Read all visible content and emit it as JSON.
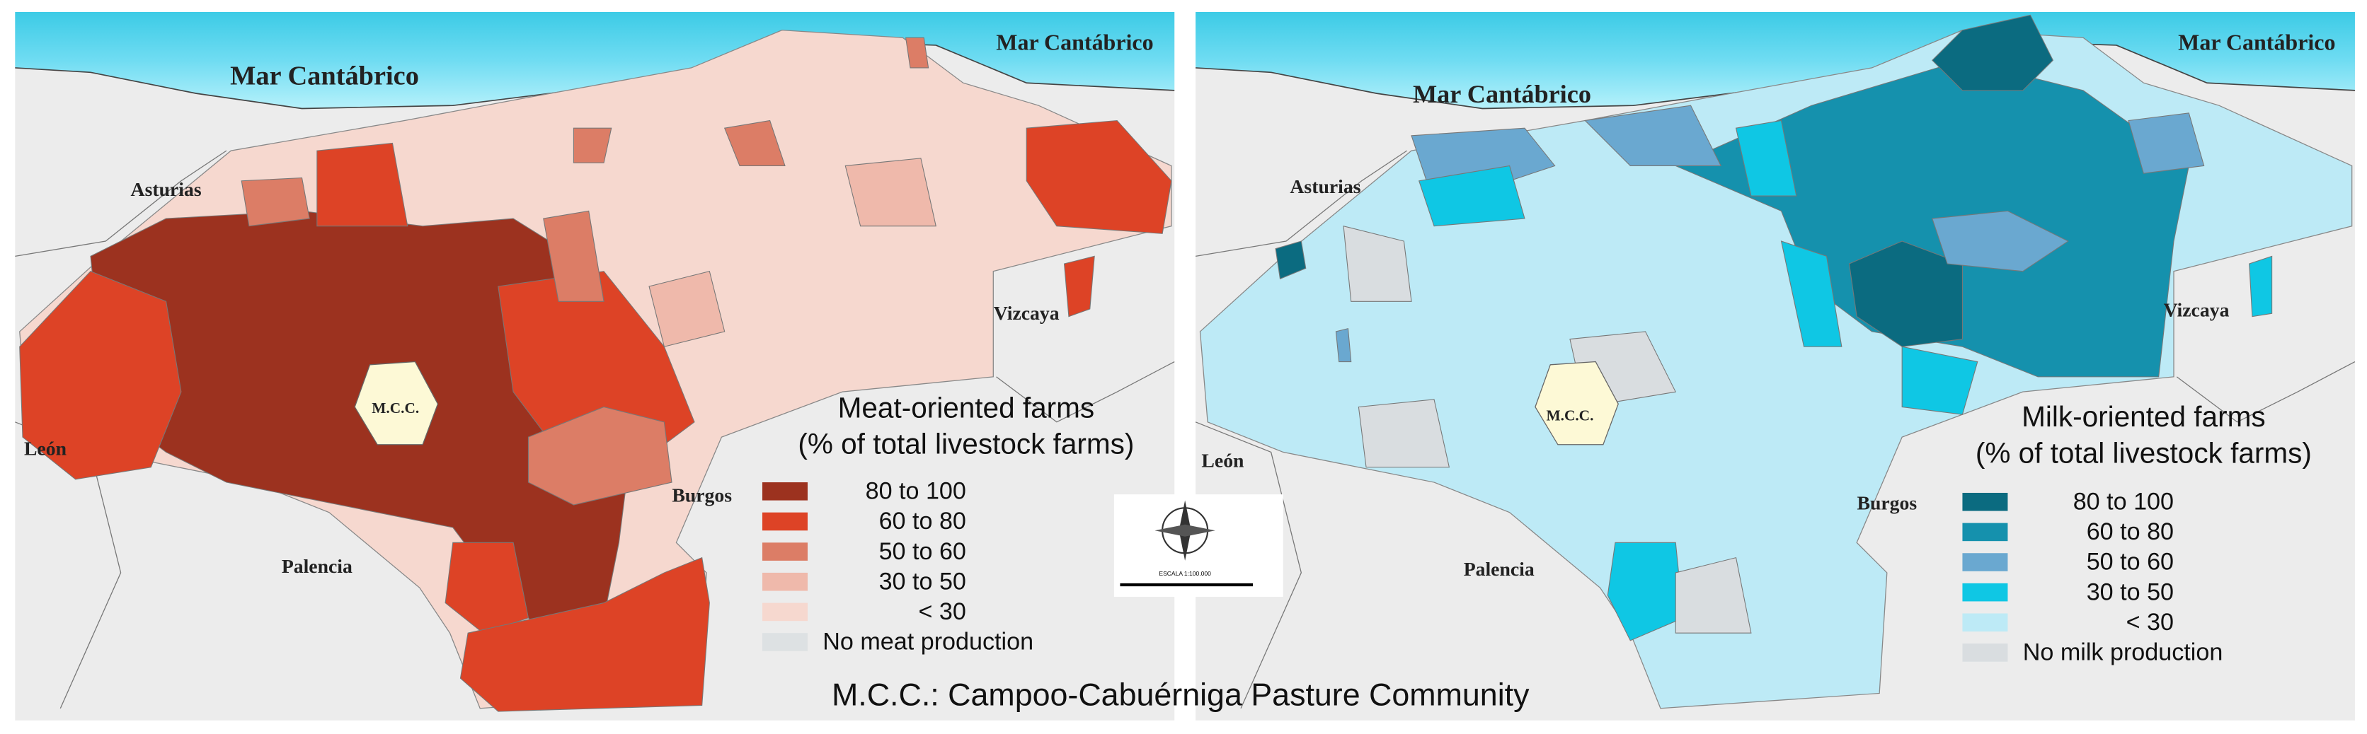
{
  "panels": [
    {
      "labels": {
        "sea_west": "Mar Cantábrico",
        "sea_east": "Mar Cantábrico",
        "asturias": "Asturias",
        "vizcaya": "Vizcaya",
        "leon": "León",
        "burgos": "Burgos",
        "palencia": "Palencia",
        "mcc": "M.C.C."
      },
      "legend": {
        "title": "Meat-oriented farms",
        "subtitle": "(% of total livestock farms)",
        "classes": [
          {
            "label": "80 to 100",
            "color": "#9c321f"
          },
          {
            "label": "60 to 80",
            "color": "#dd4326"
          },
          {
            "label": "50 to 60",
            "color": "#dc7d66"
          },
          {
            "label": "30 to 50",
            "color": "#efb9ab"
          },
          {
            "label": "< 30",
            "color": "#f6d8cf"
          },
          {
            "label": "No meat production",
            "color": "#dde1e3"
          }
        ]
      }
    },
    {
      "labels": {
        "sea_west": "Mar Cantábrico",
        "sea_east": "Mar Cantábrico",
        "asturias": "Asturias",
        "vizcaya": "Vizcaya",
        "leon": "León",
        "burgos": "Burgos",
        "palencia": "Palencia",
        "mcc": "M.C.C."
      },
      "legend": {
        "title": "Milk-oriented farms",
        "subtitle": "(% of total livestock farms)",
        "classes": [
          {
            "label": "80 to 100",
            "color": "#0b6b80"
          },
          {
            "label": "60 to 80",
            "color": "#1591ad"
          },
          {
            "label": "50 to 60",
            "color": "#6aa8d0"
          },
          {
            "label": "30 to 50",
            "color": "#0fc7e4"
          },
          {
            "label": "< 30",
            "color": "#bdeaf6"
          },
          {
            "label": "No milk production",
            "color": "#d9dde0"
          }
        ]
      }
    }
  ],
  "scale_label": "ESCALA 1:100.000",
  "caption": "M.C.C.: Campoo-Cabuérniga Pasture Community"
}
